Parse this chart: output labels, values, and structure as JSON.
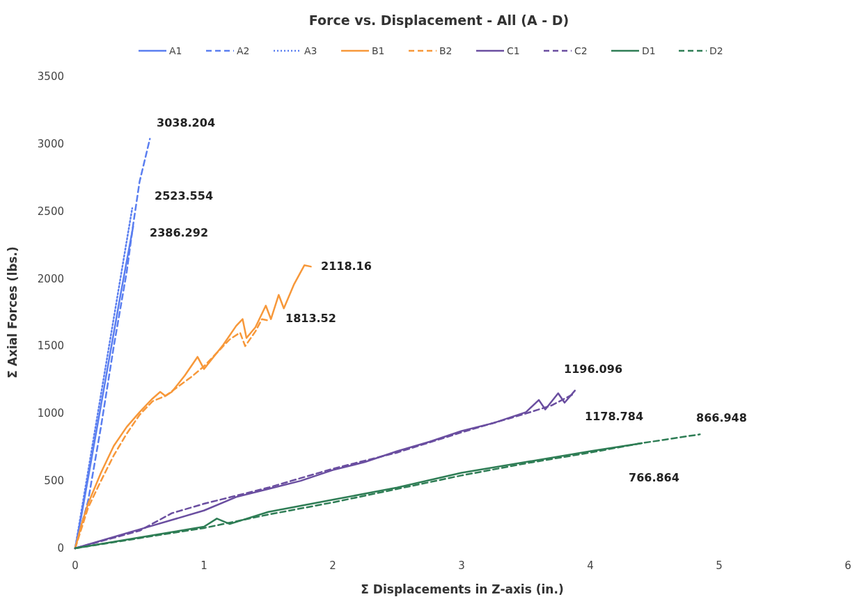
{
  "chart_data": {
    "type": "line",
    "title": "Force vs. Displacement - All (A - D)",
    "xlabel": "Σ Displacements in Z-axis (in.)",
    "ylabel": "Σ Axial Forces (lbs.)",
    "xlim": [
      0,
      6
    ],
    "xticks": [
      0,
      1,
      2,
      3,
      4,
      5,
      6
    ],
    "ylim": [
      0,
      3500
    ],
    "yticks": [
      0,
      500,
      1000,
      1500,
      2000,
      2500,
      3000,
      3500
    ],
    "grid": false,
    "legend": "top",
    "series": [
      {
        "name": "A1",
        "color": "#5a7ef0",
        "line_style": "solid",
        "x": [
          0,
          0.05,
          0.1,
          0.15,
          0.2,
          0.25,
          0.3,
          0.35,
          0.4,
          0.45
        ],
        "values": [
          0,
          250,
          520,
          790,
          1060,
          1330,
          1600,
          1870,
          2130,
          2386
        ]
      },
      {
        "name": "A2",
        "color": "#5a7ef0",
        "line_style": "dashed",
        "x": [
          0,
          0.1,
          0.2,
          0.3,
          0.4,
          0.45,
          0.5,
          0.58
        ],
        "values": [
          0,
          350,
          900,
          1500,
          2050,
          2400,
          2720,
          3038
        ]
      },
      {
        "name": "A3",
        "color": "#5a7ef0",
        "line_style": "dotted",
        "x": [
          0,
          0.05,
          0.1,
          0.15,
          0.2,
          0.25,
          0.3,
          0.35,
          0.4,
          0.443
        ],
        "values": [
          0,
          285,
          570,
          855,
          1140,
          1425,
          1710,
          1995,
          2280,
          2523
        ]
      },
      {
        "name": "B1",
        "color": "#f7983a",
        "line_style": "solid",
        "x": [
          0,
          0.05,
          0.1,
          0.2,
          0.3,
          0.4,
          0.5,
          0.6,
          0.66,
          0.7,
          0.75,
          0.85,
          0.95,
          1.0,
          1.05,
          1.15,
          1.25,
          1.3,
          1.33,
          1.4,
          1.48,
          1.52,
          1.58,
          1.62,
          1.7,
          1.78,
          1.83
        ],
        "values": [
          0,
          180,
          330,
          560,
          760,
          900,
          1010,
          1110,
          1160,
          1130,
          1160,
          1280,
          1420,
          1330,
          1390,
          1510,
          1650,
          1700,
          1560,
          1640,
          1800,
          1700,
          1880,
          1780,
          1960,
          2100,
          2090
        ]
      },
      {
        "name": "B2",
        "color": "#f7983a",
        "line_style": "dashed",
        "x": [
          0,
          0.1,
          0.2,
          0.3,
          0.4,
          0.5,
          0.6,
          0.7,
          0.8,
          0.9,
          1.0,
          1.1,
          1.2,
          1.28,
          1.32,
          1.4,
          1.45,
          1.5
        ],
        "values": [
          0,
          300,
          500,
          690,
          850,
          990,
          1090,
          1130,
          1200,
          1270,
          1350,
          1450,
          1550,
          1600,
          1500,
          1610,
          1700,
          1690
        ]
      },
      {
        "name": "C1",
        "color": "#6a4ea0",
        "line_style": "solid",
        "x": [
          0,
          0.5,
          1,
          1.25,
          1.5,
          1.75,
          2,
          2.25,
          2.5,
          2.75,
          3,
          3.25,
          3.5,
          3.6,
          3.65,
          3.75,
          3.8,
          3.88
        ],
        "values": [
          0,
          140,
          280,
          380,
          440,
          500,
          580,
          640,
          720,
          790,
          870,
          930,
          1010,
          1100,
          1030,
          1150,
          1080,
          1170
        ]
      },
      {
        "name": "C2",
        "color": "#6a4ea0",
        "line_style": "dashed",
        "x": [
          0,
          0.5,
          0.75,
          1,
          1.25,
          1.5,
          2,
          2.5,
          3,
          3.5,
          3.7,
          3.88
        ],
        "values": [
          0,
          130,
          260,
          330,
          390,
          450,
          590,
          710,
          860,
          1000,
          1060,
          1150
        ]
      },
      {
        "name": "D1",
        "color": "#2e7d55",
        "line_style": "solid",
        "x": [
          0,
          0.5,
          1,
          1.1,
          1.2,
          1.5,
          2,
          2.5,
          3,
          3.5,
          4,
          4.4
        ],
        "values": [
          0,
          80,
          160,
          220,
          180,
          270,
          360,
          450,
          560,
          640,
          720,
          780
        ]
      },
      {
        "name": "D2",
        "color": "#2e7d55",
        "line_style": "dashed",
        "x": [
          0,
          0.5,
          1,
          1.5,
          2,
          2.5,
          3,
          3.5,
          4,
          4.4,
          4.85
        ],
        "values": [
          0,
          75,
          150,
          250,
          340,
          440,
          540,
          630,
          710,
          780,
          845
        ]
      }
    ],
    "annotations": [
      "3038.204",
      "2523.554",
      "2386.292",
      "2118.16",
      "1813.52",
      "1196.096",
      "1178.784",
      "866.948",
      "766.864"
    ]
  }
}
